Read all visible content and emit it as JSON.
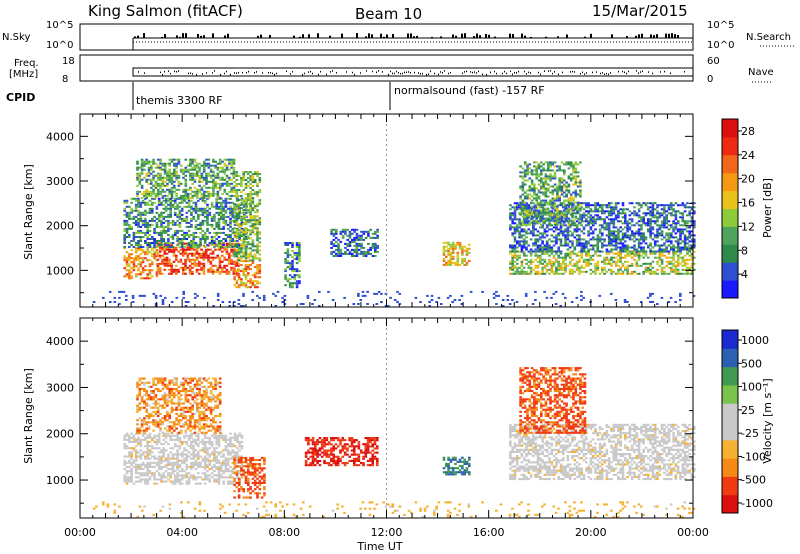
{
  "header": {
    "station": "King Salmon (fitACF)",
    "beam": "Beam 10",
    "date": "15/Mar/2015"
  },
  "strips": {
    "nsky_label": "N.Sky",
    "nsky_ticks": [
      "10^5",
      "10^0"
    ],
    "nsearch_label": "N.Search",
    "nsearch_ticks": [
      "10^5",
      "10^0"
    ],
    "freq_label_1": "Freq.",
    "freq_label_2": "[MHz]",
    "freq_ticks": [
      "18",
      "8"
    ],
    "nave_label": "Nave",
    "nave_ticks": [
      "60",
      "0"
    ],
    "cpid_label": "CPID",
    "cpid_segments": [
      "themis 3300 RF",
      "normalsound (fast) -157 RF"
    ]
  },
  "colors": {
    "power_scale": [
      "#1a1aff",
      "#2f4fd0",
      "#2e8a4a",
      "#4fa35a",
      "#8ecb3a",
      "#e8c31a",
      "#f39a12",
      "#f2661a",
      "#ee2a14",
      "#dd1010"
    ],
    "velocity_scale": [
      "#dd1010",
      "#f23a12",
      "#f58a14",
      "#f5b232",
      "#c9c9c9",
      "#c9c9c9",
      "#7ac24a",
      "#3f9a4f",
      "#2d5fb2",
      "#1a2ad0"
    ]
  },
  "chart_data": [
    {
      "type": "heatmap",
      "name": "power",
      "title": "",
      "xlabel": "Time UT",
      "ylabel": "Slant Range [km]",
      "xlim": [
        "00:00",
        "24:00"
      ],
      "ylim": [
        180,
        4500
      ],
      "x_ticks": [
        "00:00",
        "04:00",
        "08:00",
        "12:00",
        "16:00",
        "20:00",
        "00:00"
      ],
      "y_ticks": [
        "1000",
        "2000",
        "3000",
        "4000"
      ],
      "colorbar_label": "Power [dB]",
      "colorbar_ticks": [
        "4",
        "8",
        "12",
        "16",
        "20",
        "24",
        "28"
      ],
      "colorbar_range": [
        0,
        30
      ],
      "patches": [
        {
          "t": [
            1.7,
            3.0
          ],
          "r": [
            800,
            1500
          ],
          "v": 20
        },
        {
          "t": [
            3.0,
            6.2
          ],
          "r": [
            900,
            1600
          ],
          "v": 24
        },
        {
          "t": [
            1.7,
            6.5
          ],
          "r": [
            1500,
            2600
          ],
          "v": 8
        },
        {
          "t": [
            2.2,
            6.0
          ],
          "r": [
            2600,
            3500
          ],
          "v": 10
        },
        {
          "t": [
            6.0,
            7.0
          ],
          "r": [
            600,
            1200
          ],
          "v": 20
        },
        {
          "t": [
            6.0,
            7.0
          ],
          "r": [
            1200,
            3200
          ],
          "v": 12
        },
        {
          "t": [
            8.0,
            8.6
          ],
          "r": [
            600,
            1600
          ],
          "v": 8
        },
        {
          "t": [
            9.8,
            11.6
          ],
          "r": [
            1300,
            1900
          ],
          "v": 6
        },
        {
          "t": [
            14.2,
            15.2
          ],
          "r": [
            1100,
            1600
          ],
          "v": 18
        },
        {
          "t": [
            16.8,
            24.0
          ],
          "r": [
            900,
            1400
          ],
          "v": 14
        },
        {
          "t": [
            16.8,
            24.0
          ],
          "r": [
            1400,
            2500
          ],
          "v": 6
        },
        {
          "t": [
            17.2,
            19.6
          ],
          "r": [
            2000,
            3400
          ],
          "v": 10
        },
        {
          "t": [
            0.5,
            24.0
          ],
          "r": [
            180,
            500
          ],
          "v": 4
        }
      ]
    },
    {
      "type": "heatmap",
      "name": "velocity",
      "title": "",
      "xlabel": "Time UT",
      "ylabel": "Slant Range [km]",
      "xlim": [
        "00:00",
        "24:00"
      ],
      "ylim": [
        180,
        4500
      ],
      "x_ticks": [
        "00:00",
        "04:00",
        "08:00",
        "12:00",
        "16:00",
        "20:00",
        "00:00"
      ],
      "y_ticks": [
        "1000",
        "2000",
        "3000",
        "4000"
      ],
      "colorbar_label": "Velocity [m s⁻¹]",
      "colorbar_ticks": [
        "1000",
        "500",
        "100",
        "25",
        "-25",
        "-100",
        "-500",
        "-1000"
      ],
      "patches": [
        {
          "t": [
            1.7,
            6.3
          ],
          "r": [
            900,
            2000
          ],
          "v": 0
        },
        {
          "t": [
            2.2,
            5.5
          ],
          "r": [
            2000,
            3200
          ],
          "v": -150
        },
        {
          "t": [
            6.0,
            7.2
          ],
          "r": [
            600,
            1500
          ],
          "v": -300
        },
        {
          "t": [
            8.8,
            11.6
          ],
          "r": [
            1300,
            1900
          ],
          "v": -500
        },
        {
          "t": [
            14.2,
            15.2
          ],
          "r": [
            1100,
            1500
          ],
          "v": 500
        },
        {
          "t": [
            16.8,
            24.0
          ],
          "r": [
            1000,
            2200
          ],
          "v": 0
        },
        {
          "t": [
            17.2,
            19.8
          ],
          "r": [
            2000,
            3400
          ],
          "v": -300
        },
        {
          "t": [
            0.5,
            24.0
          ],
          "r": [
            180,
            500
          ],
          "v": -50
        }
      ]
    }
  ]
}
